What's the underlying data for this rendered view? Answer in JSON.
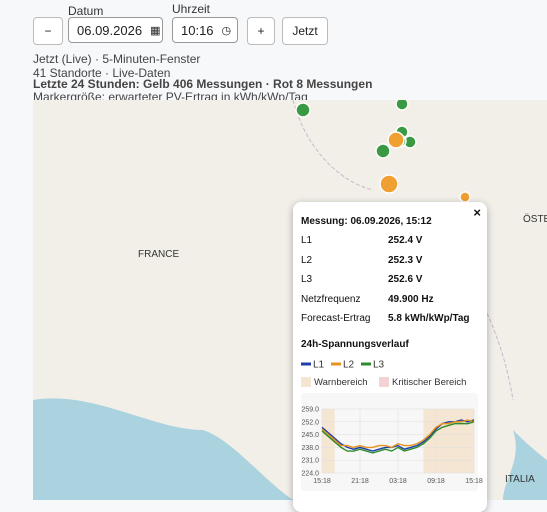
{
  "controls": {
    "minus": "−",
    "date_label": "Datum",
    "date": "06.09.2026",
    "time_label": "Uhrzeit",
    "time": "10:16",
    "plus": "+",
    "now": "Jetzt"
  },
  "info": {
    "line1": "Jetzt (Live) · 5-Minuten-Fenster",
    "line2": "41 Standorte · Live-Daten",
    "line3": "Letzte 24 Stunden: Gelb 406 Messungen · Rot 8 Messungen",
    "line4": "Markergröße: erwarteter PV-Ertrag in kWh/kWp/Tag"
  },
  "map": {
    "labels": [
      "FRANCE",
      "ÖSTER",
      "ITALIA"
    ]
  },
  "popup": {
    "close": "×",
    "title": "Messung: 06.09.2026, 15:12",
    "rows": [
      [
        "L1",
        "252.4 V"
      ],
      [
        "L2",
        "252.3 V"
      ],
      [
        "L3",
        "252.6 V"
      ],
      [
        "Netzfrequenz",
        "49.900 Hz"
      ],
      [
        "Forecast-Ertrag",
        "5.8 kWh/kWp/Tag"
      ]
    ],
    "chart_title": "24h-Spannungsverlauf",
    "warn": "Warnbereich",
    "critical": "Kritischer Bereich"
  },
  "chart_data": {
    "type": "line",
    "categories": [
      "15:18",
      null,
      null,
      null,
      null,
      null,
      "21:18",
      null,
      null,
      null,
      null,
      null,
      "03:18",
      null,
      null,
      null,
      null,
      null,
      "09:18",
      null,
      null,
      null,
      null,
      null,
      "15:18"
    ],
    "series": [
      {
        "name": "L1",
        "color": "#1f3fa8",
        "values": [
          249,
          246,
          243,
          240,
          238,
          237,
          238,
          237,
          236,
          237,
          238,
          238,
          239,
          237,
          238,
          239,
          241,
          244,
          248,
          251,
          252,
          252,
          253,
          252,
          253
        ]
      },
      {
        "name": "L2",
        "color": "#e8921e",
        "values": [
          248,
          245,
          242,
          239,
          239,
          238,
          239,
          238,
          238,
          239,
          239,
          238,
          240,
          239,
          239,
          240,
          242,
          245,
          249,
          251,
          251,
          252,
          252,
          253,
          252
        ]
      },
      {
        "name": "L3",
        "color": "#2e8b2e",
        "values": [
          247,
          244,
          241,
          238,
          236,
          236,
          237,
          236,
          235,
          236,
          237,
          236,
          238,
          236,
          237,
          238,
          240,
          243,
          247,
          249,
          250,
          251,
          251,
          251,
          252
        ]
      }
    ],
    "ylim": [
      224,
      259
    ],
    "yticks": [
      {
        "value": 224,
        "label": "224.0"
      },
      {
        "value": 231,
        "label": "231.0"
      },
      {
        "value": 238,
        "label": "238.0"
      },
      {
        "value": 245,
        "label": "245.0"
      },
      {
        "value": 252,
        "label": "252.0"
      },
      {
        "value": 259,
        "label": "259.0"
      }
    ],
    "grid": true
  }
}
